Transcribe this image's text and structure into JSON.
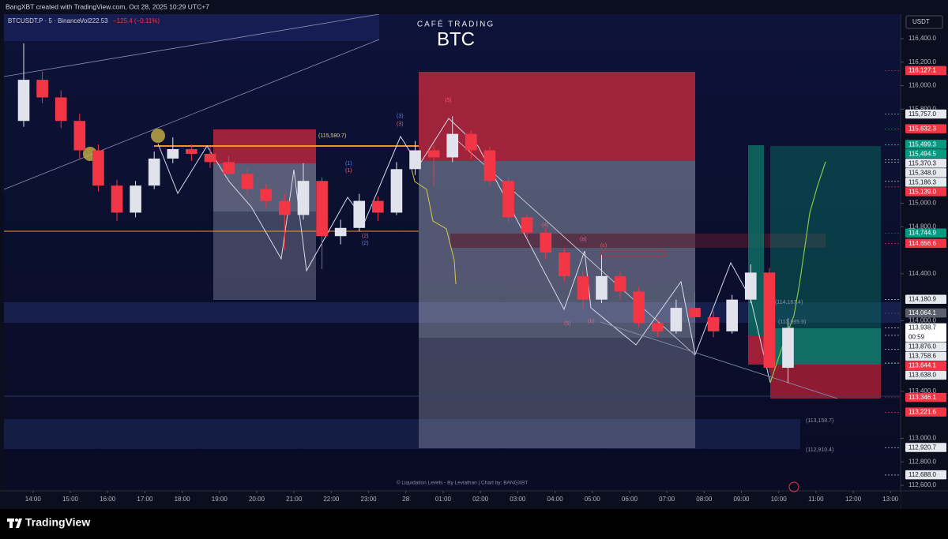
{
  "header": {
    "credit": "BangXBT created with TradingView.com, Oct 28, 2025 10:29 UTC+7",
    "symbol": "BTCUSDT.P · 5 · Binance",
    "volume": "Vol222.53",
    "change": "−125.4 (−0.11%)",
    "brand": "CAFÉ TRADING",
    "ticker": "BTC",
    "currency": "USDT"
  },
  "footer": {
    "watermark": "© Liquidation Levels - By Leviathan | Chart by: BANGXBT",
    "logo": "TradingView"
  },
  "annotations": [
    {
      "text": "(115,580.7)",
      "color": "#e6d36b"
    },
    {
      "text": "(113,158.7)",
      "color": "#8a8fa3"
    },
    {
      "text": "(112,910.4)",
      "color": "#8a8fa3"
    },
    {
      "text": "(114,167.4)",
      "color": "#8a8fa3"
    },
    {
      "text": "(113,995.9)",
      "color": "#8a8fa3"
    },
    {
      "text": "(5)",
      "color": "#f05a6a"
    },
    {
      "text": "(3)",
      "color": "#4f7dff"
    },
    {
      "text": "(3)",
      "color": "#f05a6a"
    },
    {
      "text": "(1)",
      "color": "#4f7dff"
    },
    {
      "text": "(1)",
      "color": "#f05a6a"
    },
    {
      "text": "(2)",
      "color": "#f05a6a"
    },
    {
      "text": "(2)",
      "color": "#4f7dff"
    },
    {
      "text": "(4)",
      "color": "#f05a6a"
    },
    {
      "text": "(a)",
      "color": "#f05a6a"
    },
    {
      "text": "(c)",
      "color": "#f05a6a"
    },
    {
      "text": "(b)",
      "color": "#f05a6a"
    },
    {
      "text": "(5)",
      "color": "#f05a6a"
    }
  ],
  "chart_data": {
    "type": "candlestick",
    "up_color": "#e0e3eb",
    "down_color": "#f23645",
    "grid": false,
    "xlim": [
      0.22,
      24.27
    ],
    "ylim": [
      112553,
      116608
    ],
    "xticks": [
      {
        "value": 1,
        "label": "14:00"
      },
      {
        "value": 2,
        "label": "15:00"
      },
      {
        "value": 3,
        "label": "16:00"
      },
      {
        "value": 4,
        "label": "17:00"
      },
      {
        "value": 5,
        "label": "18:00"
      },
      {
        "value": 6,
        "label": "19:00"
      },
      {
        "value": 7,
        "label": "20:00"
      },
      {
        "value": 8,
        "label": "21:00"
      },
      {
        "value": 9,
        "label": "22:00"
      },
      {
        "value": 10,
        "label": "23:00"
      },
      {
        "value": 11,
        "label": "28"
      },
      {
        "value": 12,
        "label": "01:00"
      },
      {
        "value": 13,
        "label": "02:00"
      },
      {
        "value": 14,
        "label": "03:00"
      },
      {
        "value": 15,
        "label": "04:00"
      },
      {
        "value": 16,
        "label": "05:00"
      },
      {
        "value": 17,
        "label": "06:00"
      },
      {
        "value": 18,
        "label": "07:00"
      },
      {
        "value": 19,
        "label": "08:00"
      },
      {
        "value": 20,
        "label": "09:00"
      },
      {
        "value": 21,
        "label": "10:00"
      },
      {
        "value": 22,
        "label": "11:00"
      },
      {
        "value": 23,
        "label": "12:00"
      },
      {
        "value": 24,
        "label": "13:00"
      }
    ],
    "yticks": [
      {
        "value": 116400,
        "label": "116,400.0"
      },
      {
        "value": 116200,
        "label": "116,200.0"
      },
      {
        "value": 116000,
        "label": "116,000.0"
      },
      {
        "value": 115800,
        "label": "115,800.0"
      },
      {
        "value": 115000,
        "label": "115,000.0"
      },
      {
        "value": 114800,
        "label": "114,800.0"
      },
      {
        "value": 114400,
        "label": "114,400.0"
      },
      {
        "value": 114000,
        "label": "114,000.0"
      },
      {
        "value": 113400,
        "label": "113,400.0"
      },
      {
        "value": 113000,
        "label": "113,000.0"
      },
      {
        "value": 112800,
        "label": "112,800.0"
      },
      {
        "value": 112600,
        "label": "112,600.0"
      }
    ],
    "x": [
      0.75,
      1.25,
      1.75,
      2.25,
      2.75,
      3.25,
      3.75,
      4.25,
      4.75,
      5.25,
      5.75,
      6.25,
      6.75,
      7.25,
      7.75,
      8.25,
      8.75,
      9.25,
      9.75,
      10.25,
      10.75,
      11.25,
      11.75,
      12.25,
      12.75,
      13.25,
      13.75,
      14.25,
      14.75,
      15.25,
      15.75,
      16.25,
      16.75,
      17.25,
      17.75,
      18.25,
      18.75,
      19.25,
      19.75,
      20.25,
      20.75,
      21.25
    ],
    "open": [
      115700,
      116050,
      115900,
      115700,
      115450,
      115150,
      114920,
      115150,
      115380,
      115460,
      115420,
      115350,
      115250,
      115120,
      115020,
      114900,
      115190,
      114720,
      114790,
      115020,
      114920,
      115290,
      115450,
      115390,
      115590,
      115450,
      115190,
      114880,
      114750,
      114580,
      114380,
      114180,
      114380,
      114250,
      113980,
      113910,
      114110,
      114030,
      113910,
      114180,
      114410,
      113600
    ],
    "high": [
      116360,
      116120,
      115960,
      115760,
      115500,
      115200,
      115190,
      115440,
      115560,
      115500,
      115480,
      115400,
      115290,
      115160,
      115080,
      115340,
      115220,
      114860,
      115080,
      115060,
      115350,
      115530,
      115490,
      115740,
      115620,
      115480,
      115220,
      114910,
      114790,
      114620,
      114420,
      114560,
      114420,
      114290,
      114020,
      114180,
      114250,
      114080,
      114220,
      114480,
      114450,
      114020
    ],
    "low": [
      115650,
      115850,
      115640,
      115380,
      115100,
      114850,
      114880,
      115120,
      115340,
      115360,
      115300,
      115200,
      115060,
      114960,
      114600,
      114860,
      114440,
      114650,
      114760,
      114850,
      114900,
      115240,
      115150,
      115350,
      115380,
      115150,
      114840,
      114700,
      114520,
      114330,
      114100,
      114150,
      114180,
      113940,
      113860,
      113890,
      114000,
      113860,
      113890,
      114150,
      113560,
      113470
    ],
    "close": [
      116050,
      115900,
      115700,
      115450,
      115150,
      114920,
      115150,
      115380,
      115460,
      115420,
      115350,
      115250,
      115120,
      115020,
      114900,
      115190,
      114720,
      114790,
      115020,
      114920,
      115290,
      115450,
      115390,
      115590,
      115450,
      115190,
      114880,
      114750,
      114580,
      114380,
      114180,
      114380,
      114250,
      113980,
      113910,
      114110,
      114030,
      113910,
      114180,
      114410,
      113600,
      113940
    ],
    "countdown": "00:59",
    "price_tags": [
      {
        "value": 116127.1,
        "label": "116,127.1",
        "color": "#f23645"
      },
      {
        "value": 115757.0,
        "label": "115,757.0",
        "color": "#e8e9ee"
      },
      {
        "value": 115632.3,
        "label": "115,632.3",
        "color": "#f23645"
      },
      {
        "value": 115499.3,
        "label": "115,499.3",
        "color": "#089981"
      },
      {
        "value": 115494.5,
        "label": "115,494.5",
        "color": "#089981"
      },
      {
        "value": 115370.3,
        "label": "115,370.3",
        "color": "#e8e9ee"
      },
      {
        "value": 115348.0,
        "label": "115,348.0",
        "color": "#e8e9ee"
      },
      {
        "value": 115186.3,
        "label": "115,186.3",
        "color": "#e8e9ee"
      },
      {
        "value": 115139.0,
        "label": "115,139.0",
        "color": "#f23645"
      },
      {
        "value": 114744.9,
        "label": "114,744.9",
        "color": "#089981"
      },
      {
        "value": 114656.6,
        "label": "114,656.6",
        "color": "#f23645"
      },
      {
        "value": 114180.9,
        "label": "114,180.9",
        "color": "#e8e9ee"
      },
      {
        "value": 114064.1,
        "label": "114,064.1",
        "color": "#5d606b"
      },
      {
        "value": 113938.7,
        "label": "113,938.7",
        "color": "#ffffff",
        "current": true
      },
      {
        "value": 113876.0,
        "label": "113,876.0",
        "color": "#e8e9ee"
      },
      {
        "value": 113758.6,
        "label": "113,758.6",
        "color": "#e8e9ee"
      },
      {
        "value": 113644.1,
        "label": "113,644.1",
        "color": "#f23645"
      },
      {
        "value": 113638.0,
        "label": "113,638.0",
        "color": "#e8e9ee"
      },
      {
        "value": 113346.1,
        "label": "113,346.1",
        "color": "#f23645"
      },
      {
        "value": 113221.6,
        "label": "113,221.6",
        "color": "#f23645"
      },
      {
        "value": 112920.7,
        "label": "112,920.7",
        "color": "#e8e9ee"
      },
      {
        "value": 112688.0,
        "label": "112,688.0",
        "color": "#e8e9ee"
      }
    ]
  }
}
